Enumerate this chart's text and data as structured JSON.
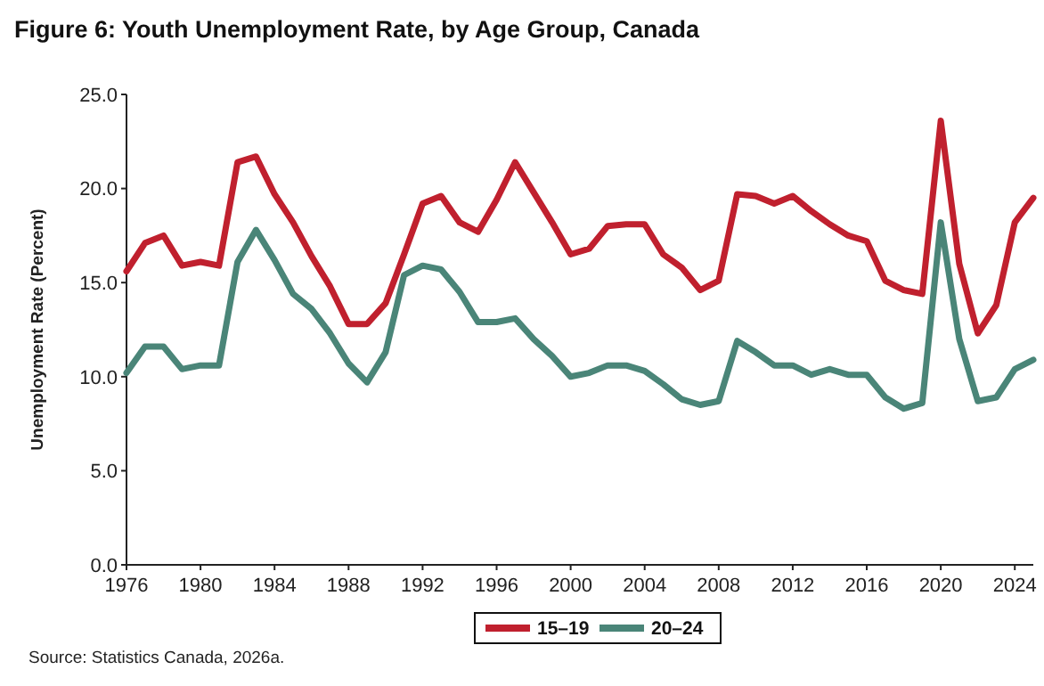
{
  "chart_data": {
    "type": "line",
    "title": "Figure 6: Youth Unemployment Rate, by Age Group, Canada",
    "ylabel": "Unemployment Rate (Percent)",
    "annotations": [
      "Source: Statistics Canada, 2026a."
    ],
    "x": [
      1976,
      1977,
      1978,
      1979,
      1980,
      1981,
      1982,
      1983,
      1984,
      1985,
      1986,
      1987,
      1988,
      1989,
      1990,
      1991,
      1992,
      1993,
      1994,
      1995,
      1996,
      1997,
      1998,
      1999,
      2000,
      2001,
      2002,
      2003,
      2004,
      2005,
      2006,
      2007,
      2008,
      2009,
      2010,
      2011,
      2012,
      2013,
      2014,
      2015,
      2016,
      2017,
      2018,
      2019,
      2020,
      2021,
      2022,
      2023,
      2024,
      2025
    ],
    "series": [
      {
        "name": "15–19",
        "color": "#c0202e",
        "values": [
          15.6,
          17.1,
          17.5,
          15.9,
          16.1,
          15.9,
          21.4,
          21.7,
          19.7,
          18.2,
          16.4,
          14.8,
          12.8,
          12.8,
          13.9,
          16.5,
          19.2,
          19.6,
          18.2,
          17.7,
          19.4,
          21.4,
          19.8,
          18.2,
          16.5,
          16.8,
          18.0,
          18.1,
          18.1,
          16.5,
          15.8,
          14.6,
          15.1,
          19.7,
          19.6,
          19.2,
          19.6,
          18.8,
          18.1,
          17.5,
          17.2,
          15.1,
          14.6,
          14.4,
          23.6,
          16.0,
          12.3,
          13.8,
          18.2,
          19.5
        ]
      },
      {
        "name": "20–24",
        "color": "#4a8578",
        "values": [
          10.2,
          11.6,
          11.6,
          10.4,
          10.6,
          10.6,
          16.1,
          17.8,
          16.2,
          14.4,
          13.6,
          12.3,
          10.7,
          9.7,
          11.3,
          15.4,
          15.9,
          15.7,
          14.5,
          12.9,
          12.9,
          13.1,
          12.0,
          11.1,
          10.0,
          10.2,
          10.6,
          10.6,
          10.3,
          9.6,
          8.8,
          8.5,
          8.7,
          11.9,
          11.3,
          10.6,
          10.6,
          10.1,
          10.4,
          10.1,
          10.1,
          8.9,
          8.3,
          8.6,
          18.2,
          12.0,
          8.7,
          8.9,
          10.4,
          10.9
        ]
      }
    ],
    "xlim": [
      1976,
      2025
    ],
    "xticks": [
      1976,
      1980,
      1984,
      1988,
      1992,
      1996,
      2000,
      2004,
      2008,
      2012,
      2016,
      2020,
      2024
    ],
    "ylim": [
      0,
      25
    ],
    "yticks": [
      {
        "value": 0,
        "label": "0.0"
      },
      {
        "value": 5,
        "label": "5.0"
      },
      {
        "value": 10,
        "label": "10.0"
      },
      {
        "value": 15,
        "label": "15.0"
      },
      {
        "value": 20,
        "label": "20.0"
      },
      {
        "value": 25,
        "label": "25.0"
      }
    ],
    "legend": "bottom",
    "grid": false,
    "marker": "none",
    "line_style": "solid"
  }
}
